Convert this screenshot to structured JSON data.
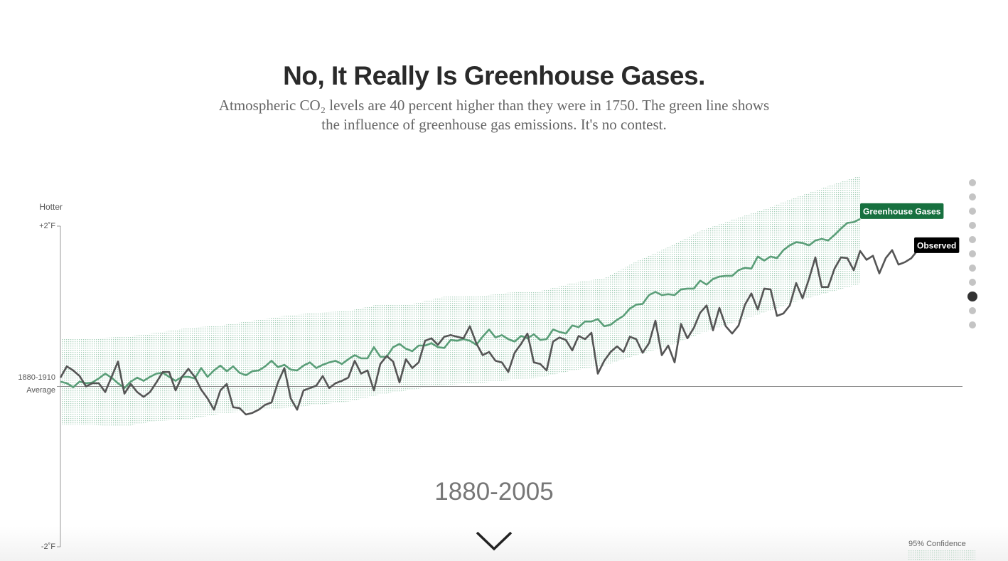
{
  "chart_data": {
    "type": "line",
    "title": "No, It Really Is Greenhouse Gases.",
    "subtitle": "Atmospheric CO₂ levels are 40 percent higher than they were in 1750. The green line shows the influence of greenhouse gas emissions. It's no contest.",
    "y_axis_label": "Hotter",
    "period_label": "1880-2005",
    "x": [
      1880,
      1881,
      1882,
      1883,
      1884,
      1885,
      1886,
      1887,
      1888,
      1889,
      1890,
      1891,
      1892,
      1893,
      1894,
      1895,
      1896,
      1897,
      1898,
      1899,
      1900,
      1901,
      1902,
      1903,
      1904,
      1905,
      1906,
      1907,
      1908,
      1909,
      1910,
      1911,
      1912,
      1913,
      1914,
      1915,
      1916,
      1917,
      1918,
      1919,
      1920,
      1921,
      1922,
      1923,
      1924,
      1925,
      1926,
      1927,
      1928,
      1929,
      1930,
      1931,
      1932,
      1933,
      1934,
      1935,
      1936,
      1937,
      1938,
      1939,
      1940,
      1941,
      1942,
      1943,
      1944,
      1945,
      1946,
      1947,
      1948,
      1949,
      1950,
      1951,
      1952,
      1953,
      1954,
      1955,
      1956,
      1957,
      1958,
      1959,
      1960,
      1961,
      1962,
      1963,
      1964,
      1965,
      1966,
      1967,
      1968,
      1969,
      1970,
      1971,
      1972,
      1973,
      1974,
      1975,
      1976,
      1977,
      1978,
      1979,
      1980,
      1981,
      1982,
      1983,
      1984,
      1985,
      1986,
      1987,
      1988,
      1989,
      1990,
      1991,
      1992,
      1993,
      1994,
      1995,
      1996,
      1997,
      1998,
      1999,
      2000,
      2001,
      2002,
      2003,
      2004,
      2005,
      2006,
      2007,
      2008,
      2009,
      2010,
      2011,
      2012,
      2013,
      2014
    ],
    "xlim": [
      1880,
      2021
    ],
    "ylim": [
      -2,
      2
    ],
    "yticks": [
      {
        "value": 2,
        "label": "+2˚F"
      },
      {
        "value": 0,
        "label": "1880-1910 Average"
      },
      {
        "value": -2,
        "label": "-2˚F"
      }
    ],
    "zero_line": true,
    "series": [
      {
        "name": "Greenhouse Gases",
        "color": "#5a9e78",
        "label_color": "#17703f",
        "values": [
          0.06,
          0.04,
          -0.01,
          0.06,
          0.04,
          0.05,
          0.1,
          0.16,
          0.11,
          0.04,
          -0.02,
          0.06,
          0.11,
          0.07,
          0.12,
          0.16,
          0.17,
          0.12,
          0.07,
          0.12,
          0.12,
          0.1,
          0.23,
          0.12,
          0.2,
          0.26,
          0.19,
          0.25,
          0.17,
          0.14,
          0.19,
          0.2,
          0.25,
          0.32,
          0.24,
          0.27,
          0.21,
          0.2,
          0.26,
          0.3,
          0.23,
          0.27,
          0.3,
          0.32,
          0.28,
          0.34,
          0.39,
          0.35,
          0.35,
          0.49,
          0.37,
          0.37,
          0.49,
          0.53,
          0.47,
          0.44,
          0.51,
          0.51,
          0.54,
          0.49,
          0.48,
          0.58,
          0.57,
          0.59,
          0.57,
          0.52,
          0.62,
          0.71,
          0.61,
          0.64,
          0.59,
          0.56,
          0.63,
          0.6,
          0.65,
          0.58,
          0.59,
          0.71,
          0.68,
          0.66,
          0.76,
          0.74,
          0.81,
          0.81,
          0.84,
          0.75,
          0.77,
          0.83,
          0.88,
          0.97,
          1.02,
          1.03,
          1.14,
          1.18,
          1.14,
          1.15,
          1.14,
          1.21,
          1.22,
          1.22,
          1.32,
          1.27,
          1.34,
          1.37,
          1.38,
          1.38,
          1.45,
          1.48,
          1.47,
          1.62,
          1.57,
          1.62,
          1.6,
          1.7,
          1.76,
          1.8,
          1.79,
          1.76,
          1.82,
          1.84,
          1.82,
          1.89,
          1.97,
          2.04,
          2.05,
          2.09,
          null,
          null,
          null,
          null,
          null,
          null,
          null,
          null,
          null
        ]
      },
      {
        "name": "Observed",
        "color": "#555555",
        "label_color": "#000000",
        "values": [
          0.11,
          0.25,
          0.2,
          0.13,
          0.0,
          0.04,
          0.04,
          -0.07,
          0.12,
          0.31,
          -0.09,
          0.03,
          -0.07,
          -0.13,
          -0.07,
          0.05,
          0.18,
          0.18,
          -0.05,
          0.12,
          0.22,
          0.12,
          -0.04,
          -0.15,
          -0.29,
          -0.05,
          0.03,
          -0.26,
          -0.27,
          -0.35,
          -0.33,
          -0.29,
          -0.23,
          -0.2,
          0.05,
          0.23,
          -0.15,
          -0.29,
          -0.05,
          -0.02,
          0.01,
          0.13,
          -0.02,
          0.04,
          0.07,
          0.11,
          0.32,
          0.16,
          0.2,
          -0.05,
          0.28,
          0.38,
          0.31,
          0.05,
          0.34,
          0.23,
          0.3,
          0.57,
          0.6,
          0.52,
          0.62,
          0.64,
          0.62,
          0.6,
          0.75,
          0.54,
          0.39,
          0.43,
          0.32,
          0.3,
          0.18,
          0.42,
          0.53,
          0.66,
          0.3,
          0.28,
          0.2,
          0.56,
          0.61,
          0.58,
          0.45,
          0.63,
          0.59,
          0.67,
          0.16,
          0.32,
          0.43,
          0.5,
          0.43,
          0.62,
          0.59,
          0.42,
          0.54,
          0.82,
          0.39,
          0.51,
          0.3,
          0.78,
          0.6,
          0.73,
          0.92,
          1.01,
          0.7,
          0.98,
          0.75,
          0.66,
          0.76,
          1.02,
          1.16,
          0.96,
          1.22,
          1.21,
          0.88,
          0.91,
          1.01,
          1.29,
          1.1,
          1.34,
          1.61,
          1.24,
          1.24,
          1.47,
          1.61,
          1.6,
          1.45,
          1.69,
          1.58,
          1.63,
          1.41,
          1.6,
          1.7,
          1.52,
          1.55,
          1.6,
          1.7
        ]
      }
    ],
    "band": {
      "name": "95% Confidence",
      "color": "#9fcab2",
      "x": [
        1880,
        1885,
        1890,
        1895,
        1900,
        1905,
        1910,
        1915,
        1920,
        1925,
        1930,
        1935,
        1940,
        1945,
        1950,
        1955,
        1960,
        1965,
        1970,
        1975,
        1980,
        1985,
        1990,
        1995,
        2000,
        2005
      ],
      "upper": [
        0.59,
        0.6,
        0.62,
        0.67,
        0.73,
        0.76,
        0.82,
        0.88,
        0.92,
        0.94,
        1.03,
        1.03,
        1.12,
        1.12,
        1.17,
        1.19,
        1.29,
        1.35,
        1.56,
        1.74,
        1.94,
        2.08,
        2.21,
        2.36,
        2.5,
        2.63
      ],
      "lower": [
        -0.48,
        -0.48,
        -0.5,
        -0.43,
        -0.41,
        -0.34,
        -0.3,
        -0.27,
        -0.23,
        -0.19,
        -0.1,
        -0.04,
        0.02,
        0.04,
        0.08,
        0.11,
        0.2,
        0.26,
        0.39,
        0.5,
        0.66,
        0.79,
        0.92,
        1.06,
        1.17,
        1.28
      ]
    }
  }
}
